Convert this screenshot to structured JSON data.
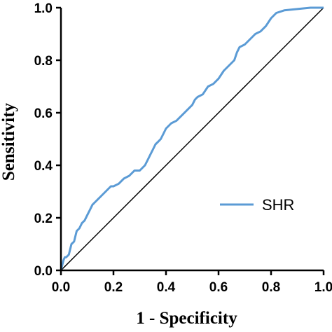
{
  "chart_data": {
    "type": "line",
    "title": "",
    "xlabel": "1 - Specificity",
    "ylabel": "Sensitivity",
    "xlim": [
      0,
      1
    ],
    "ylim": [
      0,
      1
    ],
    "x_ticks": [
      "0.0",
      "0.2",
      "0.4",
      "0.6",
      "0.8",
      "1.0"
    ],
    "y_ticks": [
      "0.0",
      "0.2",
      "0.4",
      "0.6",
      "0.8",
      "1.0"
    ],
    "grid": false,
    "legend_position": "lower-right",
    "reference_line": {
      "from": [
        0,
        0
      ],
      "to": [
        1,
        1
      ],
      "color": "#000000"
    },
    "series": [
      {
        "name": "SHR",
        "color": "#5b9bd5",
        "x": [
          0.0,
          0.005,
          0.01,
          0.015,
          0.02,
          0.03,
          0.04,
          0.05,
          0.055,
          0.06,
          0.07,
          0.08,
          0.09,
          0.1,
          0.11,
          0.12,
          0.13,
          0.14,
          0.15,
          0.17,
          0.19,
          0.2,
          0.22,
          0.24,
          0.26,
          0.28,
          0.3,
          0.32,
          0.33,
          0.34,
          0.35,
          0.36,
          0.37,
          0.38,
          0.39,
          0.4,
          0.42,
          0.44,
          0.46,
          0.48,
          0.5,
          0.51,
          0.52,
          0.54,
          0.56,
          0.58,
          0.6,
          0.62,
          0.64,
          0.66,
          0.67,
          0.68,
          0.7,
          0.72,
          0.74,
          0.76,
          0.78,
          0.8,
          0.82,
          0.85,
          0.9,
          0.95,
          1.0
        ],
        "y": [
          0.0,
          0.02,
          0.04,
          0.05,
          0.05,
          0.06,
          0.1,
          0.11,
          0.13,
          0.15,
          0.16,
          0.18,
          0.19,
          0.21,
          0.23,
          0.25,
          0.26,
          0.27,
          0.28,
          0.3,
          0.32,
          0.32,
          0.33,
          0.35,
          0.36,
          0.38,
          0.38,
          0.4,
          0.42,
          0.44,
          0.46,
          0.48,
          0.49,
          0.5,
          0.52,
          0.54,
          0.56,
          0.57,
          0.59,
          0.61,
          0.63,
          0.65,
          0.66,
          0.67,
          0.7,
          0.71,
          0.73,
          0.76,
          0.78,
          0.8,
          0.83,
          0.85,
          0.86,
          0.88,
          0.9,
          0.91,
          0.93,
          0.96,
          0.98,
          0.99,
          0.995,
          1.0,
          1.0
        ]
      }
    ]
  }
}
